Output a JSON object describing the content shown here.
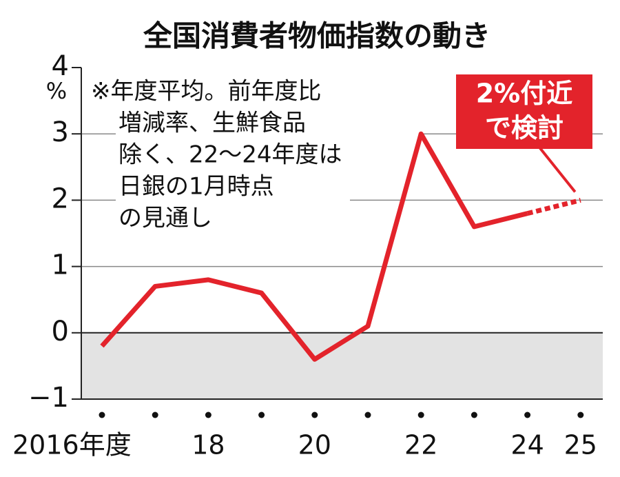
{
  "chart_data": {
    "type": "line",
    "title": "全国消費者物価指数の動き",
    "y_unit": "%",
    "categories": [
      "2016年度",
      null,
      "18",
      null,
      "20",
      null,
      "22",
      null,
      "24",
      "25"
    ],
    "values": [
      -0.2,
      0.7,
      0.8,
      0.6,
      -0.4,
      0.1,
      3.0,
      1.6,
      1.8,
      2.0
    ],
    "segment_styles": [
      "solid",
      "solid",
      "solid",
      "solid",
      "solid",
      "solid",
      "solid",
      "solid",
      "dashed"
    ],
    "color": "#e3232b",
    "ylim": [
      -1,
      4
    ],
    "yticks": [
      {
        "value": -1,
        "label": "−1"
      },
      0,
      1,
      2,
      3,
      4
    ],
    "grid": true,
    "negative_shading": "#e3e3e3",
    "note": [
      "※年度平均。前年度比",
      "増減率、生鮮食品",
      "除く、22～24年度は",
      "日銀の1月時点",
      "の見通し"
    ],
    "callout": [
      "2%付近",
      "で検討"
    ]
  }
}
